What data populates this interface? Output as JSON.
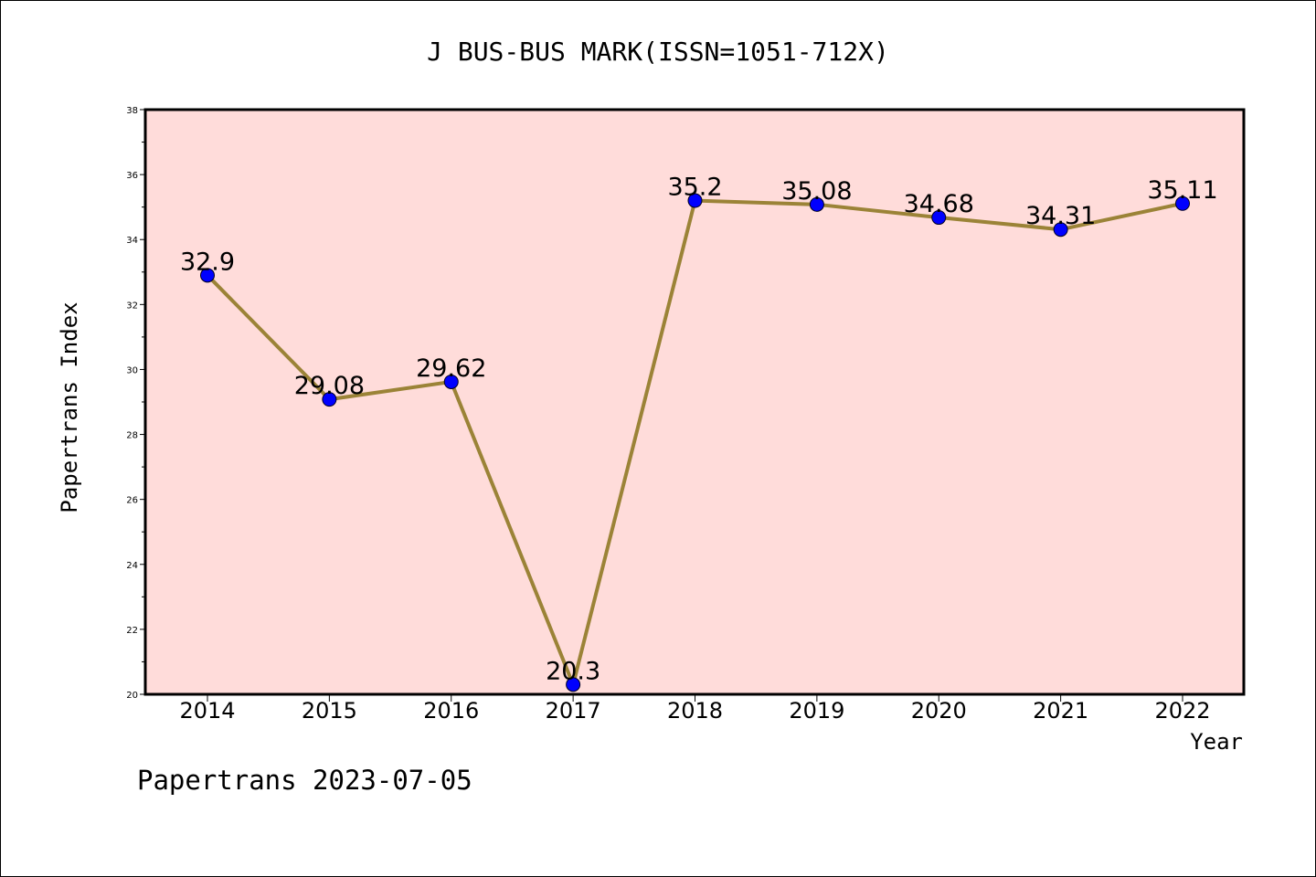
{
  "chart_data": {
    "type": "line",
    "title": "J BUS-BUS MARK(ISSN=1051-712X)",
    "xlabel": "Year",
    "ylabel": "Papertrans Index",
    "categories": [
      "2014",
      "2015",
      "2016",
      "2017",
      "2018",
      "2019",
      "2020",
      "2021",
      "2022"
    ],
    "series": [
      {
        "values": [
          32.9,
          29.08,
          29.62,
          20.3,
          35.2,
          35.08,
          34.68,
          34.31,
          35.11
        ],
        "labels": [
          "32.9",
          "29.08",
          "29.62",
          "20.3",
          "35.2",
          "35.08",
          "34.68",
          "34.31",
          "35.11"
        ]
      }
    ],
    "ylim": [
      20,
      38
    ],
    "yticks": [
      20,
      22,
      24,
      26,
      28,
      30,
      32,
      34,
      36,
      38
    ],
    "grid": false,
    "plot_background": "#FFDCDA",
    "line_color": "#9B8337",
    "marker_color": "#0000FF",
    "footer": "Papertrans 2023-07-05"
  }
}
